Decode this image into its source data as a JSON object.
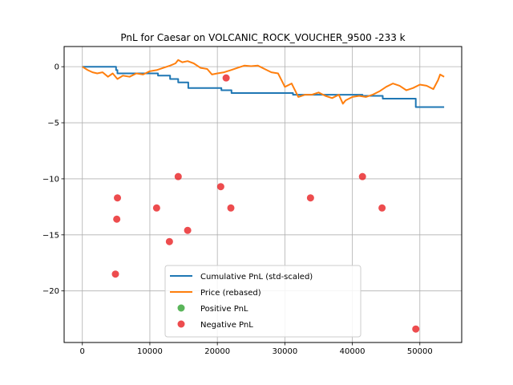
{
  "chart_data": {
    "type": "line",
    "title": "PnL for Caesar on VOLCANIC_ROCK_VOUCHER_9500 -233 k",
    "xlabel": "",
    "ylabel": "",
    "xlim": [
      -2700,
      56200
    ],
    "ylim": [
      -24.6,
      1.8
    ],
    "grid": true,
    "legend_position": "lower center",
    "x_ticks": [
      0,
      10000,
      20000,
      30000,
      40000,
      50000
    ],
    "y_ticks": [
      0,
      -5,
      -10,
      -15,
      -20
    ],
    "series": [
      {
        "name": "Cumulative PnL (std-scaled)",
        "kind": "step",
        "color": "#1f77b4",
        "points": [
          [
            0,
            0
          ],
          [
            4800,
            0
          ],
          [
            5000,
            -0.3
          ],
          [
            5200,
            -0.6
          ],
          [
            11000,
            -0.6
          ],
          [
            11200,
            -0.8
          ],
          [
            12900,
            -0.8
          ],
          [
            13000,
            -1.1
          ],
          [
            14100,
            -1.1
          ],
          [
            14200,
            -1.4
          ],
          [
            15600,
            -1.4
          ],
          [
            15700,
            -1.9
          ],
          [
            20500,
            -1.9
          ],
          [
            20600,
            -2.1
          ],
          [
            22000,
            -2.1
          ],
          [
            22100,
            -2.35
          ],
          [
            31000,
            -2.35
          ],
          [
            31200,
            -2.5
          ],
          [
            41300,
            -2.5
          ],
          [
            41500,
            -2.6
          ],
          [
            44400,
            -2.6
          ],
          [
            44500,
            -2.85
          ],
          [
            49300,
            -2.85
          ],
          [
            49400,
            -3.6
          ],
          [
            53600,
            -3.6
          ]
        ]
      },
      {
        "name": "Price (rebased)",
        "kind": "line",
        "color": "#ff7f0e",
        "points": [
          [
            0,
            0
          ],
          [
            800,
            -0.3
          ],
          [
            1500,
            -0.5
          ],
          [
            2200,
            -0.6
          ],
          [
            3000,
            -0.5
          ],
          [
            3800,
            -0.9
          ],
          [
            4500,
            -0.6
          ],
          [
            5200,
            -1.1
          ],
          [
            6000,
            -0.8
          ],
          [
            7000,
            -0.9
          ],
          [
            8000,
            -0.6
          ],
          [
            9000,
            -0.7
          ],
          [
            10000,
            -0.4
          ],
          [
            11000,
            -0.3
          ],
          [
            12000,
            -0.1
          ],
          [
            13000,
            0.1
          ],
          [
            13800,
            0.3
          ],
          [
            14200,
            0.6
          ],
          [
            14800,
            0.4
          ],
          [
            15600,
            0.5
          ],
          [
            16500,
            0.3
          ],
          [
            17500,
            -0.1
          ],
          [
            18500,
            -0.2
          ],
          [
            19200,
            -0.7
          ],
          [
            20000,
            -0.6
          ],
          [
            21000,
            -0.5
          ],
          [
            22000,
            -0.3
          ],
          [
            23000,
            -0.1
          ],
          [
            24000,
            0.1
          ],
          [
            25000,
            0.05
          ],
          [
            26000,
            0.1
          ],
          [
            27000,
            -0.2
          ],
          [
            28000,
            -0.5
          ],
          [
            29000,
            -0.6
          ],
          [
            29500,
            -1.2
          ],
          [
            30000,
            -1.8
          ],
          [
            31000,
            -1.5
          ],
          [
            32000,
            -2.7
          ],
          [
            33000,
            -2.5
          ],
          [
            34000,
            -2.5
          ],
          [
            35000,
            -2.3
          ],
          [
            36000,
            -2.6
          ],
          [
            37000,
            -2.8
          ],
          [
            38000,
            -2.5
          ],
          [
            38600,
            -3.3
          ],
          [
            39000,
            -3.0
          ],
          [
            40000,
            -2.7
          ],
          [
            41000,
            -2.6
          ],
          [
            42000,
            -2.7
          ],
          [
            43000,
            -2.5
          ],
          [
            44000,
            -2.2
          ],
          [
            45000,
            -1.8
          ],
          [
            46000,
            -1.5
          ],
          [
            47000,
            -1.7
          ],
          [
            48000,
            -2.1
          ],
          [
            49000,
            -1.9
          ],
          [
            50000,
            -1.6
          ],
          [
            51000,
            -1.7
          ],
          [
            52000,
            -2.0
          ],
          [
            52700,
            -1.2
          ],
          [
            53000,
            -0.7
          ],
          [
            53600,
            -0.9
          ]
        ]
      }
    ],
    "positive_pnl": {
      "name": "Positive PnL",
      "color": "#2ca02c",
      "points": []
    },
    "negative_pnl": {
      "name": "Negative PnL",
      "color": "#e8191c",
      "points": [
        [
          4900,
          -18.5
        ],
        [
          5100,
          -13.6
        ],
        [
          5200,
          -11.7
        ],
        [
          11000,
          -12.6
        ],
        [
          12900,
          -15.6
        ],
        [
          14200,
          -9.8
        ],
        [
          15600,
          -14.6
        ],
        [
          20500,
          -10.7
        ],
        [
          21300,
          -1.0
        ],
        [
          22000,
          -12.6
        ],
        [
          33800,
          -11.7
        ],
        [
          41500,
          -9.8
        ],
        [
          44400,
          -12.6
        ],
        [
          49400,
          -23.4
        ]
      ]
    }
  }
}
